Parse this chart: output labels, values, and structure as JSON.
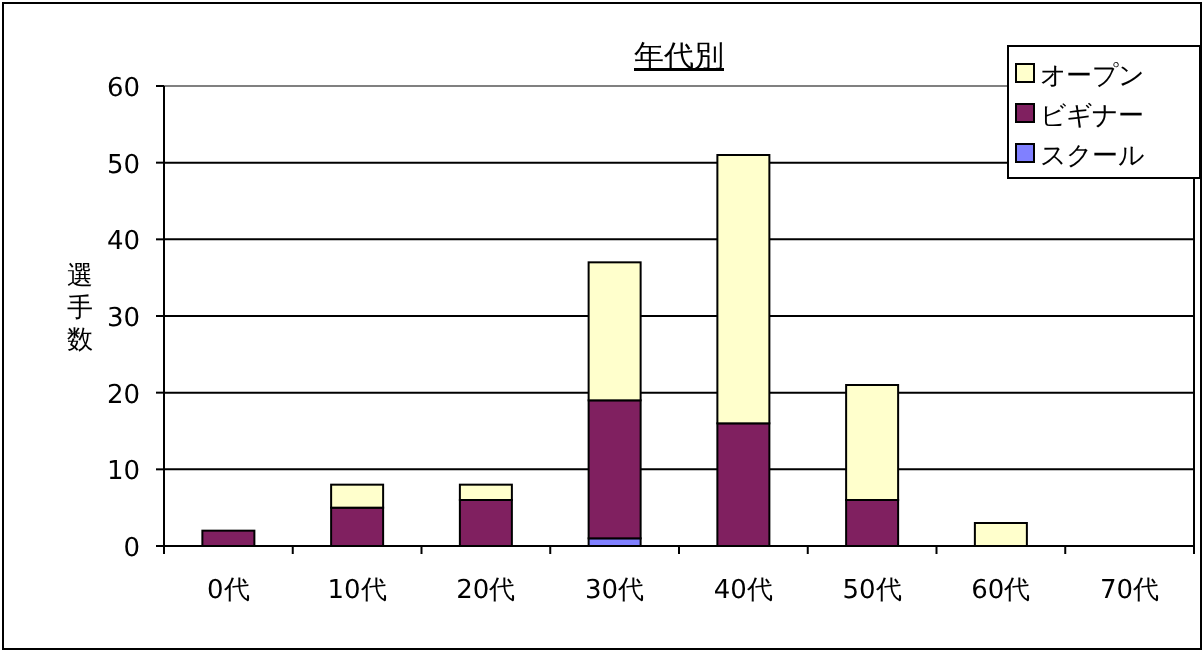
{
  "chart_data": {
    "type": "bar",
    "stacked": true,
    "title": "年代別",
    "ylabel": "選手数",
    "categories": [
      "0代",
      "10代",
      "20代",
      "30代",
      "40代",
      "50代",
      "60代",
      "70代"
    ],
    "series": [
      {
        "name": "スクール",
        "color": "#8080ff",
        "values": [
          0,
          0,
          0,
          1,
          0,
          0,
          0,
          0
        ]
      },
      {
        "name": "ビギナー",
        "color": "#802060",
        "values": [
          2,
          5,
          6,
          18,
          16,
          6,
          0,
          0
        ]
      },
      {
        "name": "オープン",
        "color": "#ffffcc",
        "values": [
          0,
          3,
          2,
          18,
          35,
          15,
          3,
          0
        ]
      }
    ],
    "ylim": [
      0,
      60
    ],
    "yticks": [
      0,
      10,
      20,
      30,
      40,
      50,
      60
    ],
    "grid": "y",
    "legend": "top right"
  }
}
